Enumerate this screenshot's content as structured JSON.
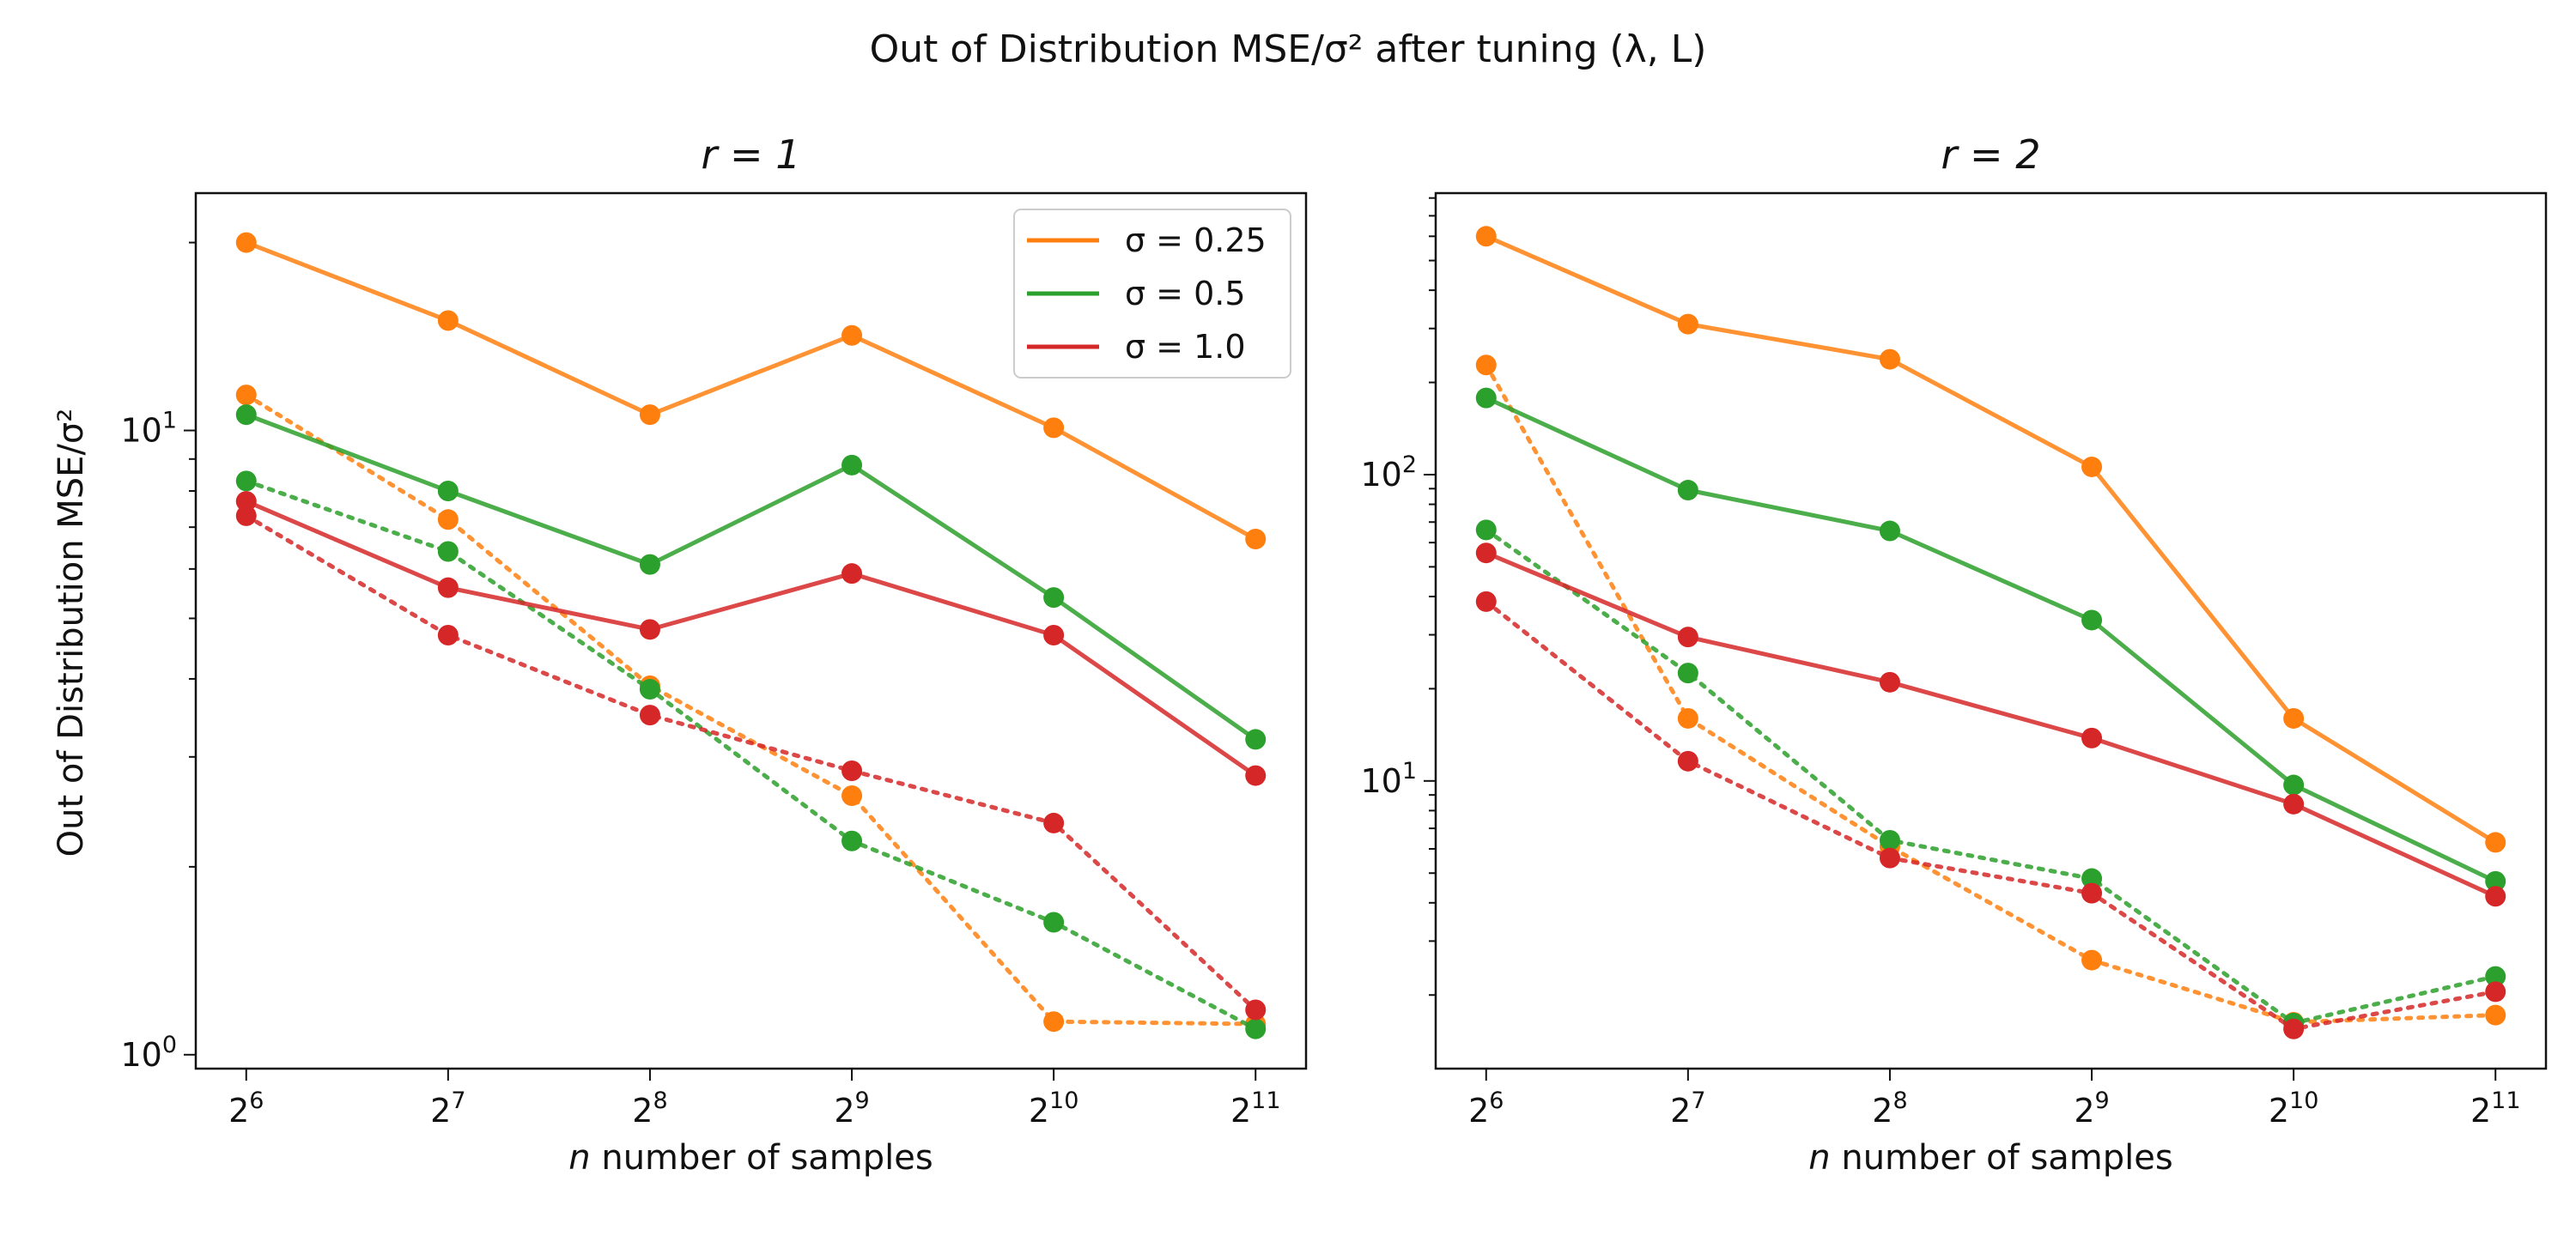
{
  "figure": {
    "suptitle": "Out of Distribution MSE/σ² after tuning (λ, L)",
    "ylabel": "Out of Distribution MSE/σ²"
  },
  "colors": {
    "sigma_0.25": "#ff7f0e",
    "sigma_0.5": "#2ca02c",
    "sigma_1.0": "#d62728"
  },
  "chart_data": [
    {
      "type": "line",
      "title": "r = 1",
      "xlabel": "n number of samples",
      "ylabel": "Out of Distribution MSE/σ²",
      "x": [
        64,
        128,
        256,
        512,
        1024,
        2048
      ],
      "x_tick_labels": [
        {
          "base": "2",
          "exp": "6"
        },
        {
          "base": "2",
          "exp": "7"
        },
        {
          "base": "2",
          "exp": "8"
        },
        {
          "base": "2",
          "exp": "9"
        },
        {
          "base": "2",
          "exp": "10"
        },
        {
          "base": "2",
          "exp": "11"
        }
      ],
      "x_scale": "log2",
      "y_scale": "log",
      "ylim": [
        0.95,
        24
      ],
      "y_tick_labels": [
        {
          "value": 1,
          "base": "10",
          "exp": "0"
        },
        {
          "value": 10,
          "base": "10",
          "exp": "1"
        }
      ],
      "legend_position": "top-right",
      "legend": [
        "σ = 0.25",
        "σ = 0.5",
        "σ = 1.0"
      ],
      "series": [
        {
          "name": "σ = 0.25",
          "style": "solid",
          "color": "#ff7f0e",
          "values": [
            20.0,
            15.0,
            10.6,
            14.2,
            10.1,
            6.7
          ]
        },
        {
          "name": "σ = 0.5",
          "style": "solid",
          "color": "#2ca02c",
          "values": [
            10.6,
            8.0,
            6.1,
            8.8,
            5.4,
            3.2
          ]
        },
        {
          "name": "σ = 1.0",
          "style": "solid",
          "color": "#d62728",
          "values": [
            7.7,
            5.6,
            4.8,
            5.9,
            4.7,
            2.8
          ]
        },
        {
          "style": "dotted",
          "color": "#ff7f0e",
          "values": [
            11.4,
            7.2,
            3.9,
            2.6,
            1.13,
            1.12
          ]
        },
        {
          "style": "dotted",
          "color": "#2ca02c",
          "values": [
            8.3,
            6.4,
            3.85,
            2.2,
            1.63,
            1.1
          ]
        },
        {
          "style": "dotted",
          "color": "#d62728",
          "values": [
            7.3,
            4.7,
            3.5,
            2.85,
            2.35,
            1.18
          ]
        }
      ]
    },
    {
      "type": "line",
      "title": "r = 2",
      "xlabel": "n number of samples",
      "x": [
        64,
        128,
        256,
        512,
        1024,
        2048
      ],
      "x_tick_labels": [
        {
          "base": "2",
          "exp": "6"
        },
        {
          "base": "2",
          "exp": "7"
        },
        {
          "base": "2",
          "exp": "8"
        },
        {
          "base": "2",
          "exp": "9"
        },
        {
          "base": "2",
          "exp": "10"
        },
        {
          "base": "2",
          "exp": "11"
        }
      ],
      "x_scale": "log2",
      "y_scale": "log",
      "ylim": [
        1.15,
        830
      ],
      "y_tick_labels": [
        {
          "value": 10,
          "base": "10",
          "exp": "1"
        },
        {
          "value": 100,
          "base": "10",
          "exp": "2"
        }
      ],
      "series": [
        {
          "name": "σ = 0.25",
          "style": "solid",
          "color": "#ff7f0e",
          "values": [
            600,
            310,
            238,
            106,
            16,
            6.3
          ]
        },
        {
          "name": "σ = 0.5",
          "style": "solid",
          "color": "#2ca02c",
          "values": [
            178,
            89,
            65.5,
            33.5,
            9.7,
            4.7
          ]
        },
        {
          "name": "σ = 1.0",
          "style": "solid",
          "color": "#d62728",
          "values": [
            55.5,
            29.5,
            21,
            13.8,
            8.4,
            4.2
          ]
        },
        {
          "style": "dotted",
          "color": "#ff7f0e",
          "values": [
            228,
            16,
            6.1,
            2.6,
            1.63,
            1.72
          ]
        },
        {
          "style": "dotted",
          "color": "#2ca02c",
          "values": [
            66,
            22.5,
            6.4,
            4.8,
            1.62,
            2.3
          ]
        },
        {
          "style": "dotted",
          "color": "#d62728",
          "values": [
            38.5,
            11.6,
            5.6,
            4.3,
            1.55,
            2.05
          ]
        }
      ]
    }
  ]
}
